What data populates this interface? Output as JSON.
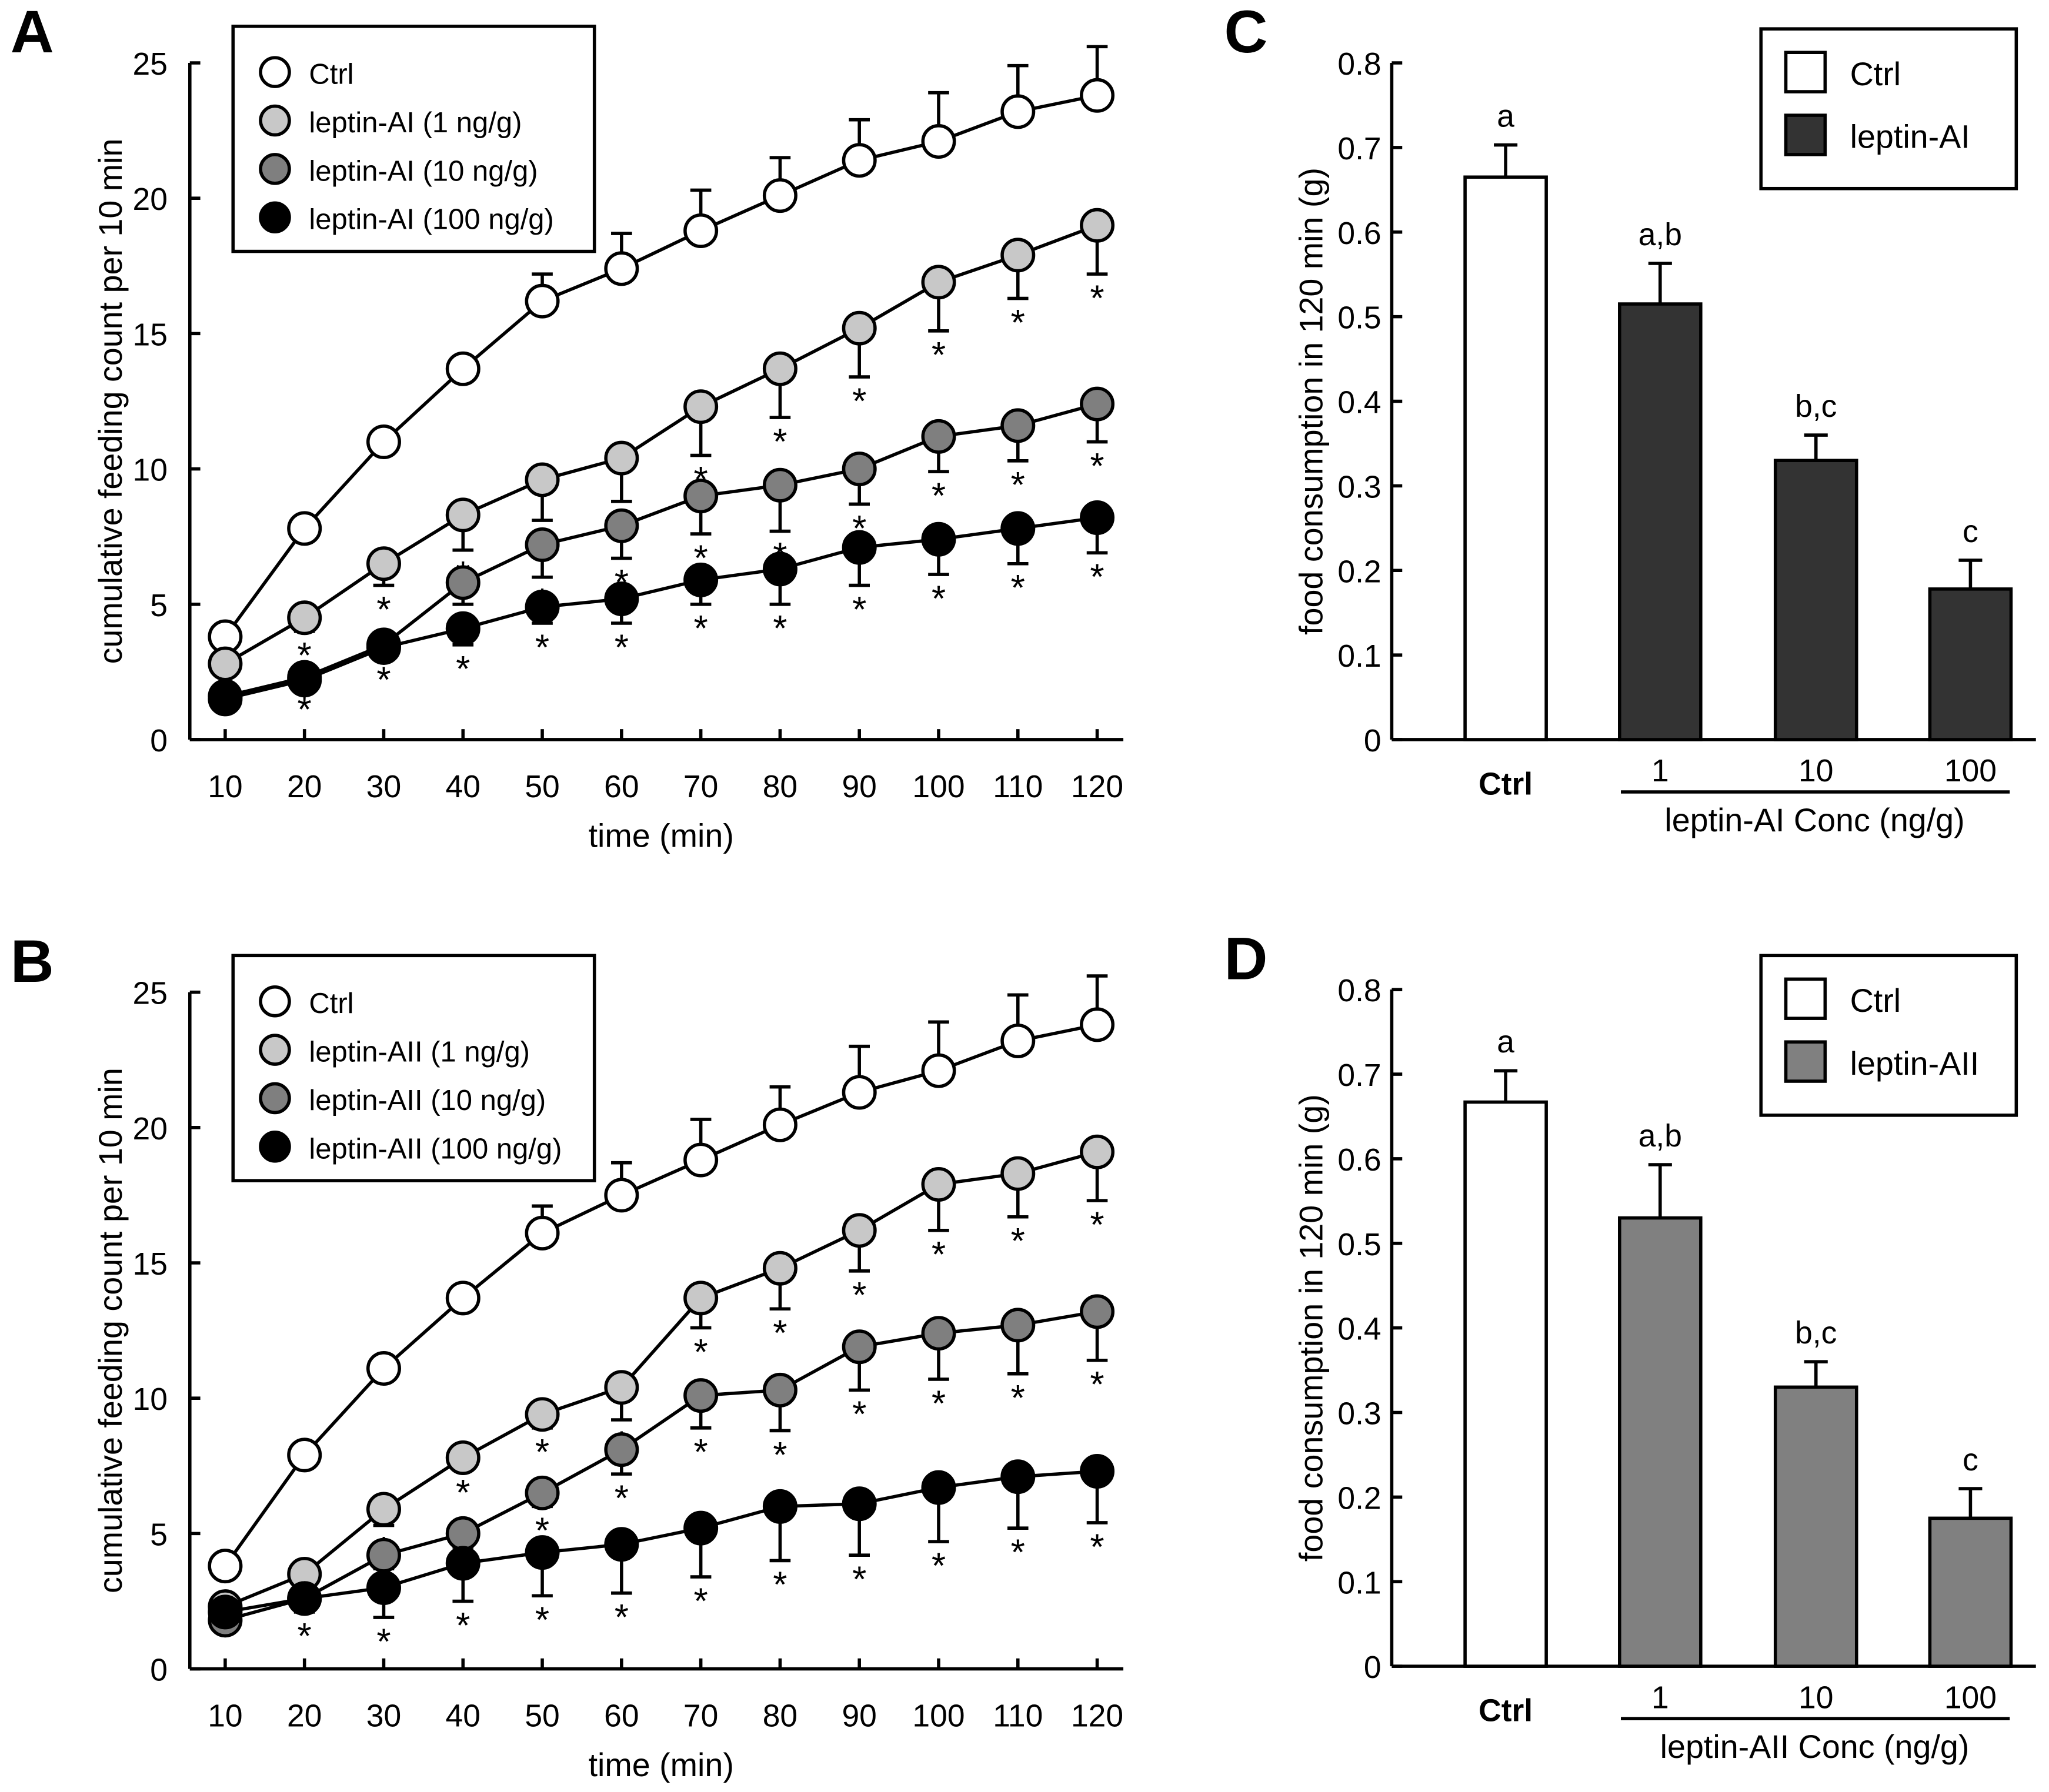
{
  "chart_data": [
    {
      "panel": "A",
      "type": "line",
      "xlabel": "time (min)",
      "ylabel": "cumulative feeding count per 10 min",
      "ylim": [
        0,
        25
      ],
      "yticks": [
        0,
        5,
        10,
        15,
        20,
        25
      ],
      "x": [
        10,
        20,
        30,
        40,
        50,
        60,
        70,
        80,
        90,
        100,
        110,
        120
      ],
      "legend_placement": "top-left",
      "series": [
        {
          "name": "Ctrl",
          "color": "#ffffff",
          "values": [
            3.8,
            7.8,
            11.0,
            13.7,
            16.2,
            17.4,
            18.8,
            20.1,
            21.4,
            22.1,
            23.2,
            23.8
          ],
          "error": [
            0.2,
            0.2,
            0.3,
            0.3,
            1.0,
            1.3,
            1.5,
            1.4,
            1.5,
            1.8,
            1.7,
            1.8
          ],
          "error_dir": "up",
          "sig": [
            0,
            0,
            0,
            0,
            0,
            0,
            0,
            0,
            0,
            0,
            0,
            0
          ]
        },
        {
          "name": "leptin-AI (1 ng/g)",
          "color": "#c8c8c8",
          "values": [
            2.8,
            4.5,
            6.5,
            8.3,
            9.6,
            10.4,
            12.3,
            13.7,
            15.2,
            16.9,
            17.9,
            19.0
          ],
          "error": [
            0.2,
            0.5,
            0.8,
            1.3,
            1.5,
            1.6,
            1.8,
            1.8,
            1.8,
            1.8,
            1.6,
            1.8
          ],
          "error_dir": "down",
          "sig": [
            0,
            1,
            1,
            1,
            1,
            1,
            1,
            1,
            1,
            1,
            1,
            1
          ]
        },
        {
          "name": "leptin-AI (10 ng/g)",
          "color": "#7f7f7f",
          "values": [
            1.6,
            2.3,
            3.5,
            5.8,
            7.2,
            7.9,
            9.0,
            9.4,
            10.0,
            11.2,
            11.6,
            12.4
          ],
          "error": [
            0.1,
            0.2,
            0.3,
            0.8,
            1.2,
            1.2,
            1.4,
            1.7,
            1.3,
            1.3,
            1.3,
            1.4
          ],
          "error_dir": "down",
          "sig": [
            0,
            0,
            0,
            1,
            1,
            1,
            1,
            1,
            1,
            1,
            1,
            1
          ]
        },
        {
          "name": "leptin-AI (100 ng/g)",
          "color": "#000000",
          "values": [
            1.5,
            2.2,
            3.4,
            4.1,
            4.9,
            5.2,
            5.9,
            6.3,
            7.1,
            7.4,
            7.8,
            8.2
          ],
          "error": [
            0.1,
            0.2,
            0.3,
            0.6,
            0.6,
            0.9,
            0.9,
            1.3,
            1.4,
            1.3,
            1.3,
            1.3
          ],
          "error_dir": "down",
          "sig": [
            0,
            1,
            1,
            1,
            1,
            1,
            1,
            1,
            1,
            1,
            1,
            1
          ]
        }
      ]
    },
    {
      "panel": "B",
      "type": "line",
      "xlabel": "time (min)",
      "ylabel": "cumulative feeding count per 10 min",
      "ylim": [
        0,
        25
      ],
      "yticks": [
        0,
        5,
        10,
        15,
        20,
        25
      ],
      "x": [
        10,
        20,
        30,
        40,
        50,
        60,
        70,
        80,
        90,
        100,
        110,
        120
      ],
      "legend_placement": "top-left",
      "series": [
        {
          "name": "Ctrl",
          "color": "#ffffff",
          "values": [
            3.8,
            7.9,
            11.1,
            13.7,
            16.1,
            17.5,
            18.8,
            20.1,
            21.3,
            22.1,
            23.2,
            23.8
          ],
          "error": [
            0.2,
            0.2,
            0.3,
            0.3,
            1.0,
            1.2,
            1.5,
            1.4,
            1.7,
            1.8,
            1.7,
            1.8
          ],
          "error_dir": "up",
          "sig": [
            0,
            0,
            0,
            0,
            0,
            0,
            0,
            0,
            0,
            0,
            0,
            0
          ]
        },
        {
          "name": "leptin-AII (1 ng/g)",
          "color": "#c8c8c8",
          "values": [
            2.3,
            3.5,
            5.9,
            7.8,
            9.4,
            10.4,
            13.7,
            14.8,
            16.2,
            17.9,
            18.3,
            19.1
          ],
          "error": [
            0.3,
            0.3,
            0.6,
            0.4,
            0.5,
            1.2,
            1.1,
            1.5,
            1.5,
            1.7,
            1.6,
            1.8
          ],
          "error_dir": "down",
          "sig": [
            0,
            1,
            1,
            1,
            1,
            1,
            1,
            1,
            1,
            1,
            1,
            1
          ]
        },
        {
          "name": "leptin-AII (10 ng/g)",
          "color": "#7f7f7f",
          "values": [
            1.8,
            2.6,
            4.2,
            5.0,
            6.5,
            8.1,
            10.1,
            10.3,
            11.9,
            12.4,
            12.7,
            13.2
          ],
          "error": [
            0.3,
            0.5,
            0.5,
            0.5,
            0.5,
            0.9,
            1.2,
            1.5,
            1.6,
            1.7,
            1.8,
            1.8
          ],
          "error_dir": "down",
          "sig": [
            0,
            0,
            1,
            1,
            1,
            1,
            1,
            1,
            1,
            1,
            1,
            1
          ]
        },
        {
          "name": "leptin-AII (100 ng/g)",
          "color": "#000000",
          "values": [
            2.1,
            2.6,
            3.0,
            3.9,
            4.3,
            4.6,
            5.2,
            6.0,
            6.1,
            6.7,
            7.1,
            7.3
          ],
          "error": [
            0.2,
            0.5,
            1.1,
            1.4,
            1.6,
            1.8,
            1.8,
            2.0,
            1.9,
            2.0,
            1.9,
            1.9
          ],
          "error_dir": "down",
          "sig": [
            0,
            1,
            1,
            1,
            1,
            1,
            1,
            1,
            1,
            1,
            1,
            1
          ]
        }
      ]
    },
    {
      "panel": "C",
      "type": "bar",
      "ylabel": "food consumption in 120 min (g)",
      "ylim": [
        0,
        0.8
      ],
      "yticks": [
        "0",
        "0.1",
        "0.2",
        "0.3",
        "0.4",
        "0.5",
        "0.6",
        "0.7",
        "0.8"
      ],
      "categories": [
        "Ctrl",
        "1",
        "10",
        "100"
      ],
      "group_label": "leptin-AI Conc (ng/g)",
      "values": [
        0.665,
        0.515,
        0.33,
        0.178
      ],
      "error": [
        0.038,
        0.048,
        0.03,
        0.034
      ],
      "letters": [
        "a",
        "a,b",
        "b,c",
        "c"
      ],
      "colors": [
        "#ffffff",
        "#333333",
        "#333333",
        "#333333"
      ],
      "legend": [
        {
          "name": "Ctrl",
          "color": "#ffffff"
        },
        {
          "name": "leptin-AI",
          "color": "#333333"
        }
      ],
      "legend_placement": "top-right"
    },
    {
      "panel": "D",
      "type": "bar",
      "ylabel": "food consumption in 120 min (g)",
      "ylim": [
        0,
        0.8
      ],
      "yticks": [
        "0",
        "0.1",
        "0.2",
        "0.3",
        "0.4",
        "0.5",
        "0.6",
        "0.7",
        "0.8"
      ],
      "categories": [
        "Ctrl",
        "1",
        "10",
        "100"
      ],
      "group_label": "leptin-AII Conc (ng/g)",
      "values": [
        0.667,
        0.53,
        0.33,
        0.175
      ],
      "error": [
        0.037,
        0.063,
        0.03,
        0.035
      ],
      "letters": [
        "a",
        "a,b",
        "b,c",
        "c"
      ],
      "colors": [
        "#ffffff",
        "#808080",
        "#808080",
        "#808080"
      ],
      "legend": [
        {
          "name": "Ctrl",
          "color": "#ffffff"
        },
        {
          "name": "leptin-AII",
          "color": "#808080"
        }
      ],
      "legend_placement": "top-right"
    }
  ],
  "sig_marker": "*"
}
